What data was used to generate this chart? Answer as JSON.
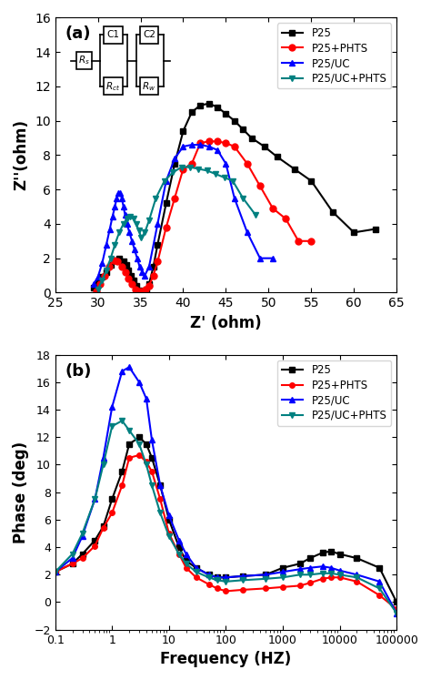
{
  "nyquist": {
    "P25": {
      "x": [
        29.5,
        30.0,
        30.5,
        31.0,
        31.5,
        32.0,
        32.5,
        33.0,
        33.3,
        33.6,
        33.9,
        34.2,
        34.5,
        34.8,
        35.1,
        35.4,
        35.7,
        36.0,
        36.5,
        37.0,
        38.0,
        39.0,
        40.0,
        41.0,
        42.0,
        43.0,
        44.0,
        45.0,
        46.0,
        47.0,
        48.0,
        49.5,
        51.0,
        53.0,
        55.0,
        57.5,
        60.0,
        62.5
      ],
      "y": [
        0.3,
        0.6,
        0.9,
        1.2,
        1.6,
        1.9,
        2.0,
        1.8,
        1.6,
        1.3,
        1.0,
        0.7,
        0.4,
        0.15,
        0.05,
        0.1,
        0.2,
        0.5,
        1.5,
        2.8,
        5.2,
        7.5,
        9.4,
        10.5,
        10.9,
        11.0,
        10.8,
        10.4,
        10.0,
        9.5,
        9.0,
        8.5,
        7.9,
        7.2,
        6.5,
        4.7,
        3.5,
        3.7
      ],
      "color": "#000000",
      "marker": "s",
      "label": "P25"
    },
    "P25PHTS": {
      "x": [
        29.8,
        30.3,
        30.8,
        31.3,
        31.8,
        32.3,
        32.8,
        33.2,
        33.6,
        34.0,
        34.4,
        34.8,
        35.2,
        35.6,
        36.0,
        36.5,
        37.0,
        38.0,
        39.0,
        40.0,
        41.0,
        42.0,
        43.0,
        44.0,
        45.0,
        46.0,
        47.5,
        49.0,
        50.5,
        52.0,
        53.5,
        55.0
      ],
      "y": [
        0.1,
        0.5,
        1.0,
        1.5,
        1.9,
        1.8,
        1.5,
        1.2,
        0.8,
        0.5,
        0.2,
        0.05,
        0.1,
        0.2,
        0.4,
        1.0,
        1.8,
        3.8,
        5.5,
        7.2,
        7.5,
        8.7,
        8.8,
        8.8,
        8.7,
        8.5,
        7.5,
        6.2,
        4.9,
        4.3,
        3.0,
        3.0
      ],
      "color": "#ff0000",
      "marker": "o",
      "label": "P25+PHTS"
    },
    "P25UC": {
      "x": [
        29.5,
        30.0,
        30.5,
        31.0,
        31.4,
        31.7,
        32.0,
        32.2,
        32.4,
        32.6,
        32.8,
        33.0,
        33.2,
        33.4,
        33.7,
        34.0,
        34.3,
        34.6,
        34.9,
        35.2,
        35.5,
        36.0,
        37.0,
        38.0,
        39.0,
        40.0,
        41.0,
        42.0,
        43.0,
        44.0,
        45.0,
        46.0,
        47.5,
        49.0,
        50.5
      ],
      "y": [
        0.5,
        0.9,
        1.7,
        2.8,
        3.7,
        4.4,
        5.0,
        5.5,
        5.8,
        5.8,
        5.5,
        5.0,
        4.5,
        4.0,
        3.5,
        3.0,
        2.5,
        2.0,
        1.5,
        1.2,
        1.0,
        1.5,
        4.0,
        6.5,
        7.8,
        8.5,
        8.6,
        8.6,
        8.5,
        8.3,
        7.5,
        5.5,
        3.5,
        2.0,
        2.0
      ],
      "color": "#0000ff",
      "marker": "^",
      "label": "P25/UC"
    },
    "P25UCPHTS": {
      "x": [
        30.0,
        30.5,
        31.0,
        31.5,
        32.0,
        32.5,
        33.0,
        33.4,
        33.8,
        34.2,
        34.5,
        34.8,
        35.1,
        35.5,
        36.0,
        36.8,
        37.8,
        38.8,
        39.8,
        40.8,
        41.8,
        42.8,
        43.8,
        44.8,
        45.8,
        47.0,
        48.5
      ],
      "y": [
        0.2,
        0.7,
        1.3,
        2.0,
        2.8,
        3.5,
        4.0,
        4.3,
        4.4,
        4.3,
        4.0,
        3.6,
        3.2,
        3.5,
        4.2,
        5.5,
        6.5,
        7.0,
        7.3,
        7.3,
        7.2,
        7.1,
        6.9,
        6.7,
        6.5,
        5.5,
        4.5
      ],
      "color": "#008080",
      "marker": "v",
      "label": "P25/UC+PHTS"
    }
  },
  "bode": {
    "freq": [
      0.1,
      0.2,
      0.3,
      0.5,
      0.7,
      1.0,
      1.5,
      2.0,
      3.0,
      4.0,
      5.0,
      7.0,
      10.0,
      15.0,
      20.0,
      30.0,
      50.0,
      70.0,
      100.0,
      200.0,
      500.0,
      1000.0,
      2000.0,
      3000.0,
      5000.0,
      7000.0,
      10000.0,
      20000.0,
      50000.0,
      100000.0
    ],
    "P25": {
      "phase": [
        2.2,
        2.8,
        3.5,
        4.5,
        5.5,
        7.5,
        9.5,
        11.5,
        12.0,
        11.5,
        10.5,
        8.5,
        6.0,
        4.0,
        3.0,
        2.5,
        2.0,
        1.8,
        1.8,
        1.9,
        2.0,
        2.5,
        2.8,
        3.2,
        3.6,
        3.7,
        3.5,
        3.2,
        2.5,
        0.0
      ],
      "color": "#000000",
      "marker": "s",
      "label": "P25"
    },
    "P25PHTS": {
      "phase": [
        2.2,
        2.8,
        3.2,
        4.1,
        5.4,
        6.5,
        8.5,
        10.5,
        10.7,
        10.2,
        9.5,
        7.5,
        5.0,
        3.5,
        2.5,
        1.8,
        1.3,
        1.0,
        0.8,
        0.9,
        1.0,
        1.1,
        1.2,
        1.4,
        1.7,
        1.8,
        1.8,
        1.5,
        0.5,
        -0.5
      ],
      "color": "#ff0000",
      "marker": "o",
      "label": "P25+PHTS"
    },
    "P25UC": {
      "phase": [
        2.2,
        3.2,
        4.8,
        7.5,
        10.5,
        14.2,
        16.8,
        17.1,
        16.0,
        14.8,
        11.8,
        8.5,
        6.3,
        4.5,
        3.5,
        2.5,
        2.0,
        1.8,
        1.8,
        1.9,
        2.0,
        2.2,
        2.4,
        2.5,
        2.6,
        2.5,
        2.3,
        2.0,
        1.5,
        -0.8
      ],
      "color": "#0000ff",
      "marker": "^",
      "label": "P25/UC"
    },
    "P25UCPHTS": {
      "phase": [
        2.2,
        3.5,
        5.0,
        7.5,
        10.0,
        12.8,
        13.2,
        12.5,
        11.5,
        10.0,
        8.5,
        6.5,
        4.8,
        3.5,
        2.8,
        2.2,
        1.8,
        1.6,
        1.5,
        1.6,
        1.7,
        1.8,
        2.0,
        2.0,
        2.1,
        2.1,
        2.0,
        1.8,
        1.0,
        -0.8
      ],
      "color": "#008080",
      "marker": "v",
      "label": "P25/UC+PHTS"
    }
  },
  "nyquist_xlim": [
    25,
    65
  ],
  "nyquist_ylim": [
    0,
    16
  ],
  "nyquist_xlabel": "Z' (ohm)",
  "nyquist_ylabel": "Z''(ohm)",
  "bode_ylim": [
    -2,
    18
  ],
  "bode_xlabel": "Frequency (HZ)",
  "bode_ylabel": "Phase (deg)",
  "bode_yticks": [
    -2,
    0,
    2,
    4,
    6,
    8,
    10,
    12,
    14,
    16,
    18
  ]
}
